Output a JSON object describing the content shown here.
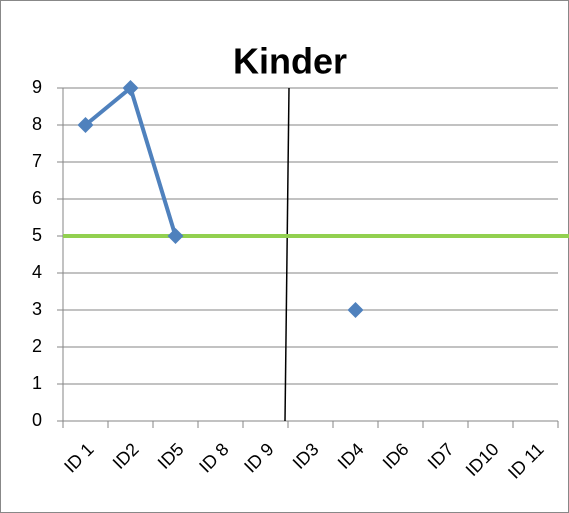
{
  "chart_data": {
    "type": "line",
    "title": "Kinder",
    "categories": [
      "ID 1",
      "ID2",
      "ID5",
      "ID 8",
      "ID 9",
      "ID3",
      "ID4",
      "ID6",
      "ID7",
      "ID10",
      "ID 11"
    ],
    "series": [
      {
        "color": "#4f81bd",
        "values": [
          8,
          9,
          5,
          null,
          null,
          null,
          3,
          null,
          null,
          null,
          null
        ]
      }
    ],
    "reference_line": {
      "value": 5,
      "color": "#92d050"
    },
    "ylim": [
      0,
      9
    ],
    "yticks": [
      0,
      1,
      2,
      3,
      4,
      5,
      6,
      7,
      8,
      9
    ],
    "grid": true
  }
}
